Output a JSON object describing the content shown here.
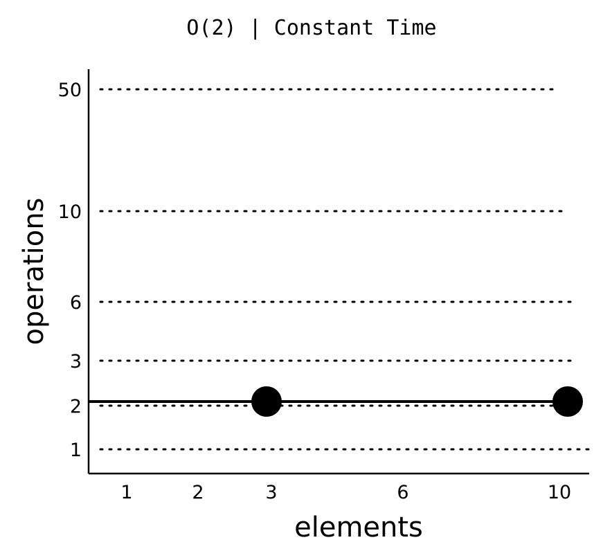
{
  "chart_data": {
    "type": "line",
    "title": "O(2) | Constant Time",
    "xlabel": "elements",
    "ylabel": "operations",
    "x_ticks": [
      1,
      2,
      3,
      6,
      10
    ],
    "y_ticks": [
      1,
      2,
      3,
      6,
      10,
      50
    ],
    "grid": true,
    "series": [
      {
        "line_y": 2,
        "points": [
          {
            "x": 3,
            "y": 2
          },
          {
            "x": 10,
            "y": 2
          }
        ]
      }
    ]
  },
  "colors": {
    "ink": "#000000",
    "background": "#ffffff"
  }
}
